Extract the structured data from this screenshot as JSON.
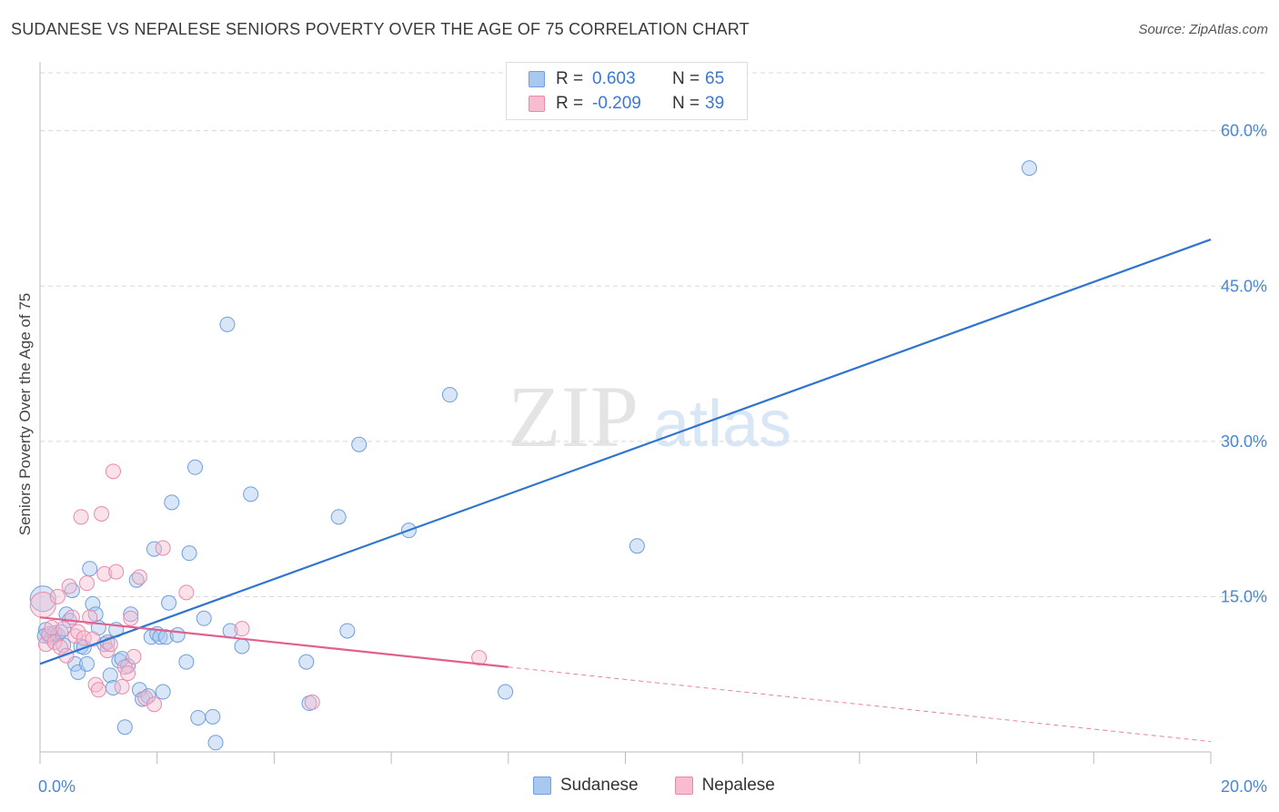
{
  "header": {
    "title": "SUDANESE VS NEPALESE SENIORS POVERTY OVER THE AGE OF 75 CORRELATION CHART",
    "source": "Source: ZipAtlas.com"
  },
  "watermark": {
    "zip": "ZIP",
    "atlas": "atlas"
  },
  "legend": {
    "rows": [
      {
        "r_label": "R =",
        "r_value": "0.603",
        "n_label": "N =",
        "n_value": "65"
      },
      {
        "r_label": "R =",
        "r_value": "-0.209",
        "n_label": "N =",
        "n_value": "39"
      }
    ]
  },
  "bottom_legend": {
    "items": [
      "Sudanese",
      "Nepalese"
    ]
  },
  "colors": {
    "sudanese_fill": "#a9c8f0",
    "sudanese_stroke": "#6f9fdc",
    "sudanese_line": "#2f74d0",
    "nepalese_fill": "#f7bcd0",
    "nepalese_stroke": "#e88bab",
    "nepalese_line": "#e0608f",
    "tick_label": "#4a86d4",
    "grid": "#d8d8d8"
  },
  "chart_data": {
    "type": "scatter",
    "title": "SUDANESE VS NEPALESE SENIORS POVERTY OVER THE AGE OF 75 CORRELATION CHART",
    "xlabel": "",
    "ylabel": "Seniors Poverty Over the Age of 75",
    "xlim": [
      0,
      20
    ],
    "ylim": [
      0,
      60
    ],
    "x_tick_labels": [
      "0.0%",
      "20.0%"
    ],
    "y_ticks": [
      15,
      30,
      45,
      60
    ],
    "y_tick_labels": [
      "15.0%",
      "30.0%",
      "45.0%",
      "60.0%"
    ],
    "grid": true,
    "legend_position": "top-center",
    "series": [
      {
        "name": "Sudanese",
        "r": 0.603,
        "n": 65,
        "trend": {
          "x": [
            0,
            20
          ],
          "y": [
            8.5,
            49.5
          ],
          "dashed_from": null
        },
        "points": [
          [
            0.05,
            14.8
          ],
          [
            0.1,
            11.8
          ],
          [
            0.15,
            11.2
          ],
          [
            0.2,
            11.0
          ],
          [
            0.25,
            11.5
          ],
          [
            0.3,
            11.3
          ],
          [
            0.35,
            11.6
          ],
          [
            0.4,
            10.3
          ],
          [
            0.45,
            13.3
          ],
          [
            0.5,
            12.7
          ],
          [
            0.55,
            15.6
          ],
          [
            0.6,
            8.5
          ],
          [
            0.65,
            7.7
          ],
          [
            0.7,
            10.2
          ],
          [
            0.75,
            10.1
          ],
          [
            0.8,
            8.5
          ],
          [
            0.85,
            17.7
          ],
          [
            0.9,
            14.3
          ],
          [
            0.95,
            13.3
          ],
          [
            1.0,
            12.0
          ],
          [
            1.1,
            10.4
          ],
          [
            1.15,
            10.6
          ],
          [
            1.2,
            7.4
          ],
          [
            1.25,
            6.2
          ],
          [
            1.3,
            11.8
          ],
          [
            1.35,
            8.8
          ],
          [
            1.4,
            9.0
          ],
          [
            1.45,
            2.4
          ],
          [
            1.5,
            8.3
          ],
          [
            1.55,
            13.3
          ],
          [
            1.65,
            16.6
          ],
          [
            1.7,
            6.0
          ],
          [
            1.75,
            5.1
          ],
          [
            1.85,
            5.4
          ],
          [
            1.9,
            11.1
          ],
          [
            1.95,
            19.6
          ],
          [
            2.0,
            11.4
          ],
          [
            2.05,
            11.1
          ],
          [
            2.1,
            5.8
          ],
          [
            2.15,
            11.1
          ],
          [
            2.2,
            14.4
          ],
          [
            2.25,
            24.1
          ],
          [
            2.35,
            11.3
          ],
          [
            2.5,
            8.7
          ],
          [
            2.55,
            19.2
          ],
          [
            2.65,
            27.5
          ],
          [
            2.7,
            3.3
          ],
          [
            2.8,
            12.9
          ],
          [
            2.95,
            3.4
          ],
          [
            3.0,
            0.9
          ],
          [
            3.2,
            41.3
          ],
          [
            3.25,
            11.7
          ],
          [
            3.45,
            10.2
          ],
          [
            3.6,
            24.9
          ],
          [
            4.55,
            8.7
          ],
          [
            4.6,
            4.7
          ],
          [
            5.1,
            22.7
          ],
          [
            5.25,
            11.7
          ],
          [
            5.45,
            29.7
          ],
          [
            6.3,
            21.4
          ],
          [
            7.0,
            34.5
          ],
          [
            7.95,
            5.8
          ],
          [
            10.2,
            19.9
          ],
          [
            16.9,
            56.4
          ],
          [
            0.08,
            11.2
          ]
        ]
      },
      {
        "name": "Nepalese",
        "r": -0.209,
        "n": 39,
        "trend": {
          "x": [
            0,
            20
          ],
          "y": [
            13.0,
            1.0
          ],
          "dashed_from": 8.0
        },
        "points": [
          [
            0.05,
            14.2
          ],
          [
            0.1,
            10.4
          ],
          [
            0.15,
            11.4
          ],
          [
            0.2,
            12.0
          ],
          [
            0.25,
            10.6
          ],
          [
            0.3,
            15.0
          ],
          [
            0.35,
            10.1
          ],
          [
            0.4,
            11.9
          ],
          [
            0.45,
            9.3
          ],
          [
            0.5,
            16.0
          ],
          [
            0.55,
            13.0
          ],
          [
            0.6,
            11.2
          ],
          [
            0.65,
            11.6
          ],
          [
            0.7,
            22.7
          ],
          [
            0.75,
            11.0
          ],
          [
            0.8,
            16.3
          ],
          [
            0.85,
            13.0
          ],
          [
            0.9,
            10.9
          ],
          [
            0.95,
            6.5
          ],
          [
            1.0,
            6.0
          ],
          [
            1.05,
            23.0
          ],
          [
            1.1,
            17.2
          ],
          [
            1.15,
            9.8
          ],
          [
            1.2,
            10.4
          ],
          [
            1.25,
            27.1
          ],
          [
            1.3,
            17.4
          ],
          [
            1.4,
            6.3
          ],
          [
            1.45,
            8.2
          ],
          [
            1.5,
            7.6
          ],
          [
            1.55,
            12.9
          ],
          [
            1.6,
            9.2
          ],
          [
            1.7,
            16.9
          ],
          [
            1.8,
            5.2
          ],
          [
            1.95,
            4.6
          ],
          [
            2.1,
            19.7
          ],
          [
            2.5,
            15.4
          ],
          [
            3.45,
            11.9
          ],
          [
            4.65,
            4.8
          ],
          [
            7.5,
            9.1
          ]
        ]
      }
    ]
  }
}
